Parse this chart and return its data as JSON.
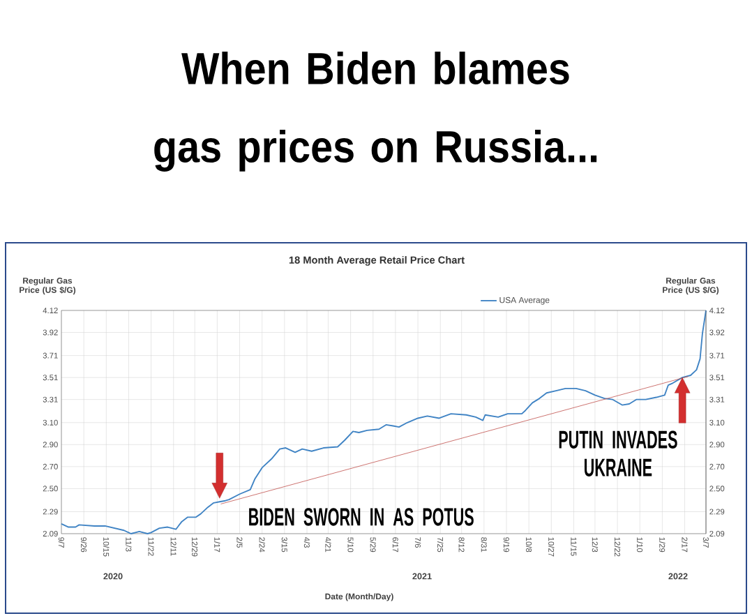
{
  "chart_data": {
    "type": "line",
    "title": "When Biden blames gas prices on Russia...",
    "subtitle": "18 Month Average Retail Price Chart",
    "xlabel": "Date (Month/Day)",
    "ylabel": "Regular Gas Price (US $/G)",
    "y2label": "Regular Gas Price (US $/G)",
    "series": [
      {
        "name": "USA Average",
        "color": "#3f83c4",
        "x": [
          "2020-09-07",
          "2020-09-13",
          "2020-09-19",
          "2020-09-22",
          "2020-10-05",
          "2020-10-14",
          "2020-10-22",
          "2020-10-30",
          "2020-11-05",
          "2020-11-12",
          "2020-11-19",
          "2020-11-22",
          "2020-11-29",
          "2020-12-06",
          "2020-12-13",
          "2020-12-18",
          "2020-12-23",
          "2020-12-30",
          "2021-01-03",
          "2021-01-09",
          "2021-01-14",
          "2021-01-19",
          "2021-01-24",
          "2021-01-27",
          "2021-02-05",
          "2021-02-14",
          "2021-02-18",
          "2021-02-24",
          "2021-03-04",
          "2021-03-11",
          "2021-03-16",
          "2021-03-24",
          "2021-03-30",
          "2021-04-07",
          "2021-04-17",
          "2021-04-29",
          "2021-05-05",
          "2021-05-12",
          "2021-05-17",
          "2021-05-24",
          "2021-06-03",
          "2021-06-09",
          "2021-06-15",
          "2021-06-20",
          "2021-06-27",
          "2021-07-06",
          "2021-07-14",
          "2021-07-24",
          "2021-08-03",
          "2021-08-16",
          "2021-08-24",
          "2021-08-30",
          "2021-09-01",
          "2021-09-12",
          "2021-09-20",
          "2021-10-02",
          "2021-10-05",
          "2021-10-11",
          "2021-10-17",
          "2021-10-23",
          "2021-10-31",
          "2021-11-08",
          "2021-11-17",
          "2021-11-25",
          "2021-12-03",
          "2021-12-11",
          "2021-12-18",
          "2021-12-26",
          "2022-01-01",
          "2022-01-07",
          "2022-01-15",
          "2022-01-24",
          "2022-01-31",
          "2022-02-03",
          "2022-02-07",
          "2022-02-15",
          "2022-02-22",
          "2022-02-27",
          "2022-03-02",
          "2022-03-04",
          "2022-03-07"
        ],
        "values": [
          2.18,
          2.15,
          2.15,
          2.17,
          2.16,
          2.16,
          2.14,
          2.12,
          2.09,
          2.11,
          2.09,
          2.1,
          2.14,
          2.15,
          2.13,
          2.2,
          2.24,
          2.24,
          2.27,
          2.33,
          2.37,
          2.38,
          2.39,
          2.4,
          2.45,
          2.49,
          2.59,
          2.69,
          2.77,
          2.86,
          2.87,
          2.83,
          2.86,
          2.84,
          2.87,
          2.88,
          2.94,
          3.02,
          3.01,
          3.03,
          3.04,
          3.08,
          3.07,
          3.06,
          3.1,
          3.14,
          3.16,
          3.14,
          3.18,
          3.17,
          3.15,
          3.12,
          3.17,
          3.15,
          3.18,
          3.18,
          3.21,
          3.28,
          3.32,
          3.37,
          3.39,
          3.41,
          3.41,
          3.39,
          3.35,
          3.32,
          3.31,
          3.26,
          3.27,
          3.31,
          3.31,
          3.33,
          3.35,
          3.44,
          3.46,
          3.51,
          3.53,
          3.58,
          3.68,
          3.91,
          4.12
        ]
      },
      {
        "type": "line",
        "color": "#c0504d",
        "x": [
          "2021-01-20",
          "2022-02-20"
        ],
        "values": [
          2.36,
          3.52
        ]
      }
    ],
    "xlim": [
      "2020-09-07",
      "2022-03-07"
    ],
    "xticks": [
      {
        "value": "2020-09-07",
        "label": "9/7"
      },
      {
        "value": "2020-09-26",
        "label": "9/26"
      },
      {
        "value": "2020-10-15",
        "label": "10/15"
      },
      {
        "value": "2020-11-03",
        "label": "11/3"
      },
      {
        "value": "2020-11-22",
        "label": "11/22"
      },
      {
        "value": "2020-12-11",
        "label": "12/11"
      },
      {
        "value": "2020-12-29",
        "label": "12/29"
      },
      {
        "value": "2021-01-17",
        "label": "1/17"
      },
      {
        "value": "2021-02-05",
        "label": "2/5"
      },
      {
        "value": "2021-02-24",
        "label": "2/24"
      },
      {
        "value": "2021-03-15",
        "label": "3/15"
      },
      {
        "value": "2021-04-03",
        "label": "4/3"
      },
      {
        "value": "2021-04-21",
        "label": "4/21"
      },
      {
        "value": "2021-05-10",
        "label": "5/10"
      },
      {
        "value": "2021-05-29",
        "label": "5/29"
      },
      {
        "value": "2021-06-17",
        "label": "6/17"
      },
      {
        "value": "2021-07-06",
        "label": "7/6"
      },
      {
        "value": "2021-07-25",
        "label": "7/25"
      },
      {
        "value": "2021-08-12",
        "label": "8/12"
      },
      {
        "value": "2021-08-31",
        "label": "8/31"
      },
      {
        "value": "2021-09-19",
        "label": "9/19"
      },
      {
        "value": "2021-10-08",
        "label": "10/8"
      },
      {
        "value": "2021-10-27",
        "label": "10/27"
      },
      {
        "value": "2021-11-15",
        "label": "11/15"
      },
      {
        "value": "2021-12-03",
        "label": "12/3"
      },
      {
        "value": "2021-12-22",
        "label": "12/22"
      },
      {
        "value": "2022-01-10",
        "label": "1/10"
      },
      {
        "value": "2022-01-29",
        "label": "1/29"
      },
      {
        "value": "2022-02-17",
        "label": "2/17"
      },
      {
        "value": "2022-03-07",
        "label": "3/7"
      }
    ],
    "ylim": [
      2.09,
      4.12
    ],
    "yticks": [
      {
        "value": 2.09,
        "label": "2.09"
      },
      {
        "value": 2.29,
        "label": "2.29"
      },
      {
        "value": 2.5,
        "label": "2.50"
      },
      {
        "value": 2.7,
        "label": "2.70"
      },
      {
        "value": 2.9,
        "label": "2.90"
      },
      {
        "value": 3.1,
        "label": "3.10"
      },
      {
        "value": 3.31,
        "label": "3.31"
      },
      {
        "value": 3.51,
        "label": "3.51"
      },
      {
        "value": 3.71,
        "label": "3.71"
      },
      {
        "value": 3.92,
        "label": "3.92"
      },
      {
        "value": 4.12,
        "label": "4.12"
      }
    ],
    "y2lim": [
      2.09,
      4.12
    ],
    "y2ticks": [
      {
        "value": 2.09,
        "label": "2.09"
      },
      {
        "value": 2.29,
        "label": "2.29"
      },
      {
        "value": 2.5,
        "label": "2.50"
      },
      {
        "value": 2.7,
        "label": "2.70"
      },
      {
        "value": 2.9,
        "label": "2.90"
      },
      {
        "value": 3.1,
        "label": "3.10"
      },
      {
        "value": 3.31,
        "label": "3.31"
      },
      {
        "value": 3.51,
        "label": "3.51"
      },
      {
        "value": 3.71,
        "label": "3.71"
      },
      {
        "value": 3.92,
        "label": "3.92"
      },
      {
        "value": 4.12,
        "label": "4.12"
      }
    ],
    "annotations": [
      {
        "text": "BIDEN SWORN IN AS POTUS",
        "x": "2021-01-19",
        "y": 2.41
      },
      {
        "text": "PUTIN INVADES UKRAINE",
        "x": "2022-02-15",
        "y": 3.51
      },
      "2020",
      "2021",
      "2022"
    ],
    "grid": true,
    "legend": "top"
  }
}
